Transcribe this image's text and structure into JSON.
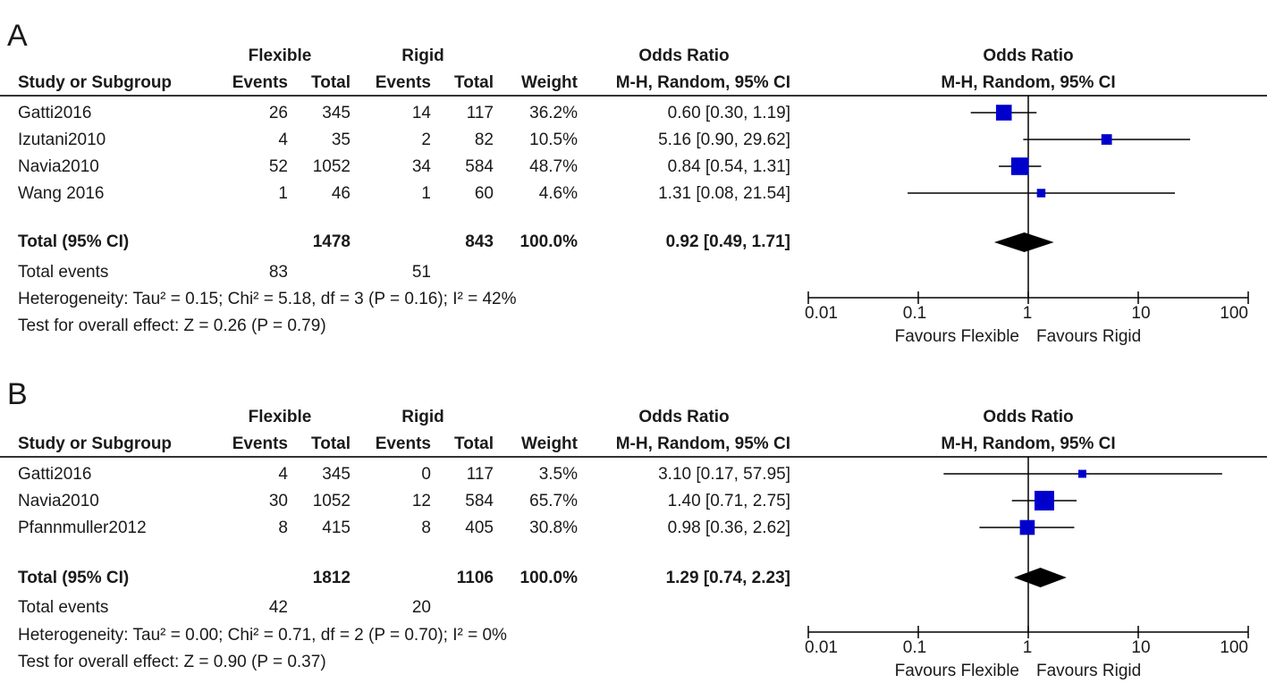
{
  "colors": {
    "marker": "#0000cc",
    "line": "#000000",
    "text": "#1a1a1a"
  },
  "header": {
    "group1": "Flexible",
    "group2": "Rigid",
    "study_col": "Study or Subgroup",
    "events": "Events",
    "total": "Total",
    "weight": "Weight",
    "or_title": "Odds Ratio",
    "or_method": "M-H, Random, 95% CI"
  },
  "chart_data": [
    {
      "type": "forest",
      "panel_label": "A",
      "axis": {
        "scale": "log",
        "ticks": [
          "0.01",
          "0.1",
          "1",
          "10",
          "100"
        ],
        "range": [
          0.01,
          100
        ],
        "left_label": "Favours Flexible",
        "right_label": "Favours Rigid"
      },
      "studies": [
        {
          "name": "Gatti2016",
          "e1": "26",
          "t1": "345",
          "e2": "14",
          "t2": "117",
          "weight": "36.2%",
          "ci_text": "0.60 [0.30, 1.19]",
          "or": 0.6,
          "lo": 0.3,
          "hi": 1.19,
          "w": 36.2
        },
        {
          "name": "Izutani2010",
          "e1": "4",
          "t1": "35",
          "e2": "2",
          "t2": "82",
          "weight": "10.5%",
          "ci_text": "5.16 [0.90, 29.62]",
          "or": 5.16,
          "lo": 0.9,
          "hi": 29.62,
          "w": 10.5
        },
        {
          "name": "Navia2010",
          "e1": "52",
          "t1": "1052",
          "e2": "34",
          "t2": "584",
          "weight": "48.7%",
          "ci_text": "0.84 [0.54, 1.31]",
          "or": 0.84,
          "lo": 0.54,
          "hi": 1.31,
          "w": 48.7
        },
        {
          "name": "Wang 2016",
          "e1": "1",
          "t1": "46",
          "e2": "1",
          "t2": "60",
          "weight": "4.6%",
          "ci_text": "1.31 [0.08, 21.54]",
          "or": 1.31,
          "lo": 0.08,
          "hi": 21.54,
          "w": 4.6
        }
      ],
      "total": {
        "label": "Total (95% CI)",
        "t1": "1478",
        "t2": "843",
        "weight": "100.0%",
        "ci_text": "0.92 [0.49, 1.71]",
        "or": 0.92,
        "lo": 0.49,
        "hi": 1.71
      },
      "events": {
        "label": "Total events",
        "e1": "83",
        "e2": "51"
      },
      "heterogeneity": "Heterogeneity: Tau² = 0.15; Chi² = 5.18, df = 3 (P = 0.16); I² = 42%",
      "overall": "Test for overall effect: Z = 0.26 (P = 0.79)"
    },
    {
      "type": "forest",
      "panel_label": "B",
      "axis": {
        "scale": "log",
        "ticks": [
          "0.01",
          "0.1",
          "1",
          "10",
          "100"
        ],
        "range": [
          0.01,
          100
        ],
        "left_label": "Favours Flexible",
        "right_label": "Favours Rigid"
      },
      "studies": [
        {
          "name": "Gatti2016",
          "e1": "4",
          "t1": "345",
          "e2": "0",
          "t2": "117",
          "weight": "3.5%",
          "ci_text": "3.10 [0.17, 57.95]",
          "or": 3.1,
          "lo": 0.17,
          "hi": 57.95,
          "w": 3.5
        },
        {
          "name": "Navia2010",
          "e1": "30",
          "t1": "1052",
          "e2": "12",
          "t2": "584",
          "weight": "65.7%",
          "ci_text": "1.40 [0.71, 2.75]",
          "or": 1.4,
          "lo": 0.71,
          "hi": 2.75,
          "w": 65.7
        },
        {
          "name": "Pfannmuller2012",
          "e1": "8",
          "t1": "415",
          "e2": "8",
          "t2": "405",
          "weight": "30.8%",
          "ci_text": "0.98 [0.36, 2.62]",
          "or": 0.98,
          "lo": 0.36,
          "hi": 2.62,
          "w": 30.8
        }
      ],
      "total": {
        "label": "Total (95% CI)",
        "t1": "1812",
        "t2": "1106",
        "weight": "100.0%",
        "ci_text": "1.29 [0.74, 2.23]",
        "or": 1.29,
        "lo": 0.74,
        "hi": 2.23
      },
      "events": {
        "label": "Total events",
        "e1": "42",
        "e2": "20"
      },
      "heterogeneity": "Heterogeneity: Tau² = 0.00; Chi² = 0.71, df = 2 (P = 0.70); I² = 0%",
      "overall": "Test for overall effect: Z = 0.90 (P = 0.37)"
    }
  ]
}
